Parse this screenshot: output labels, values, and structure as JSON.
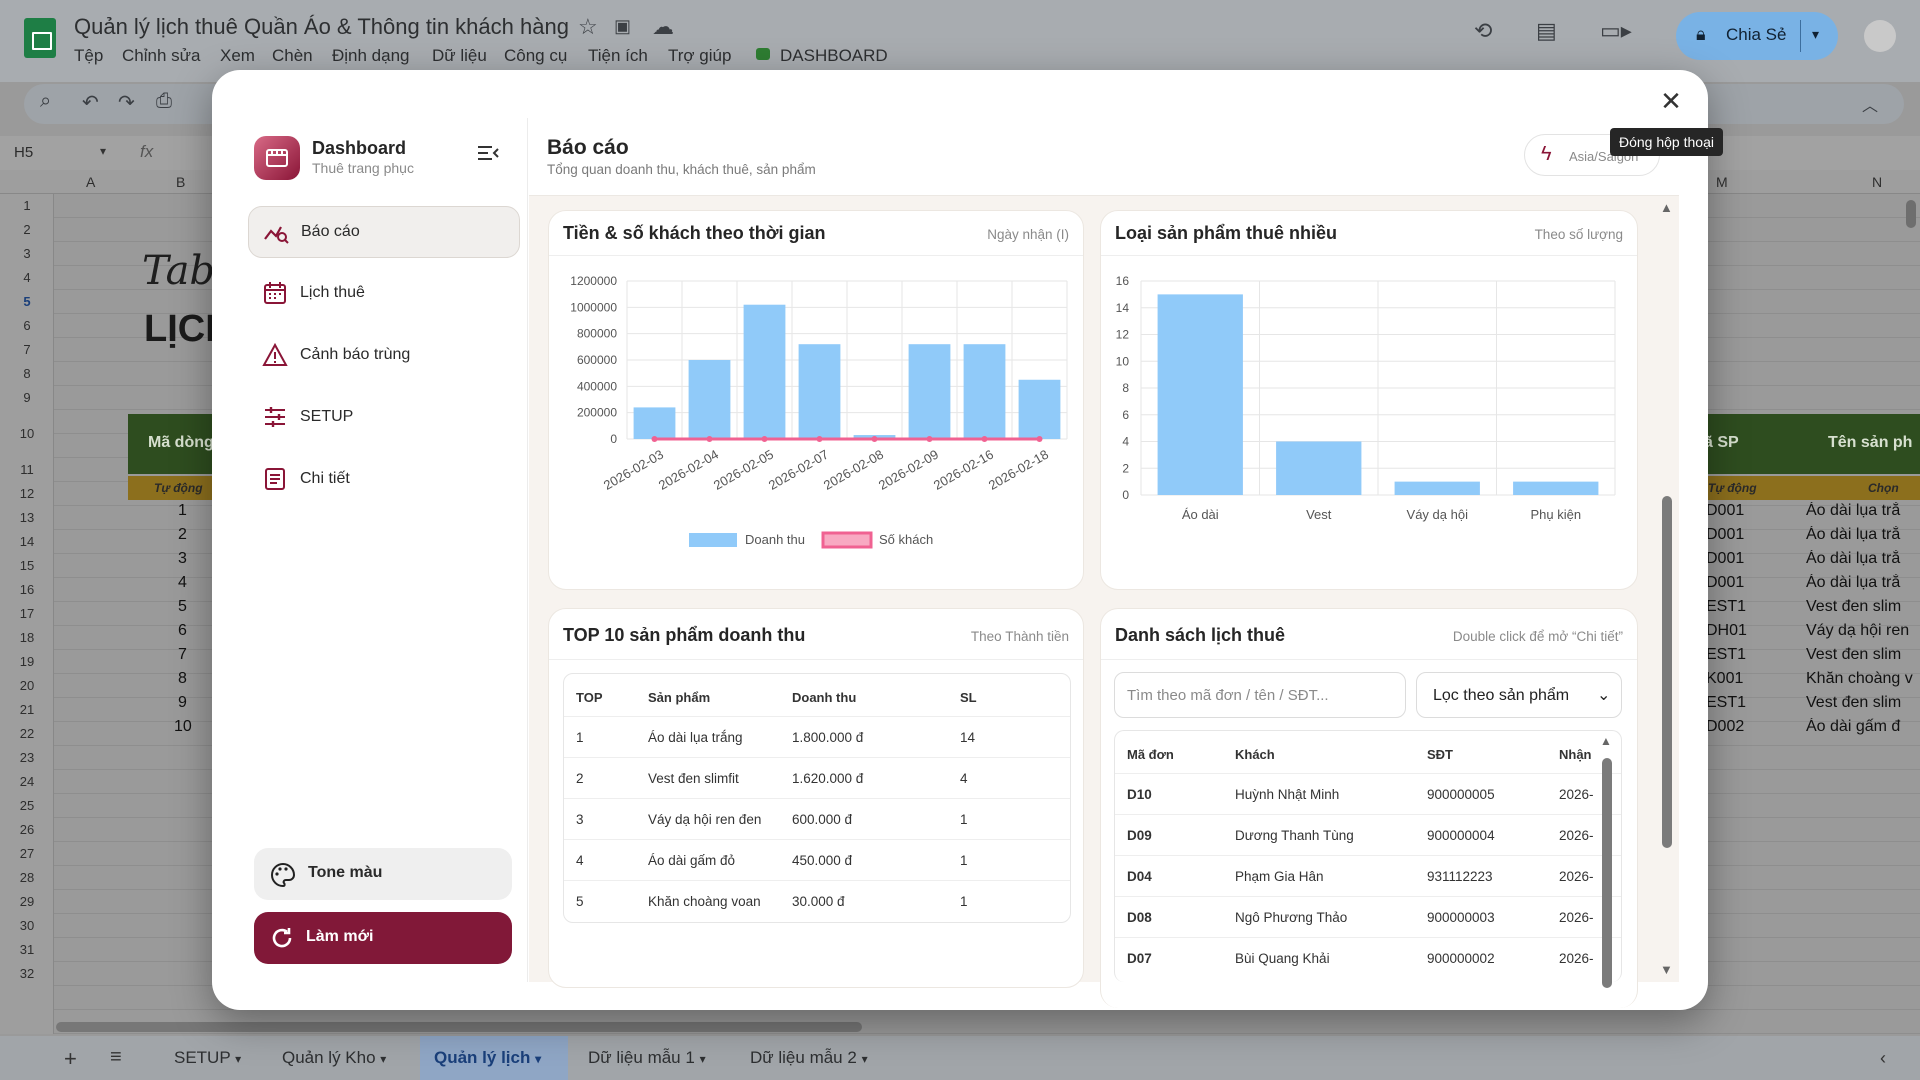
{
  "sheets": {
    "doc_title": "Quản lý lịch thuê Quần Áo & Thông tin khách hàng",
    "menu": [
      "Tệp",
      "Chỉnh sửa",
      "Xem",
      "Chèn",
      "Định dạng",
      "Dữ liệu",
      "Công cụ",
      "Tiện ích",
      "Trợ giúp",
      "DASHBOARD"
    ],
    "share_label": "Chia Sẻ",
    "name_box": "H5",
    "fx": "fx",
    "columns_left": [
      "A",
      "B"
    ],
    "columns_right": [
      "M",
      "N"
    ],
    "rows": [
      "1",
      "2",
      "3",
      "4",
      "5",
      "6",
      "7",
      "8",
      "9",
      "10",
      "11",
      "12",
      "13",
      "14",
      "15",
      "16",
      "17",
      "18",
      "19",
      "20",
      "21",
      "22",
      "23",
      "24",
      "25",
      "26",
      "27",
      "28",
      "29",
      "30",
      "31",
      "32"
    ],
    "big_text_1": "Tab q",
    "big_text_2": "LỊCH",
    "hdr_ma_dong": "Mã dòng",
    "hdr_ma_sp": "ã SP",
    "hdr_ten_sp": "Tên sản ph",
    "sub_tu_dong_left": "Tự động",
    "sub_tu_dong_right": "Tự động",
    "sub_chon": "Chọn",
    "numbers": [
      "1",
      "2",
      "3",
      "4",
      "5",
      "6",
      "7",
      "8",
      "9",
      "10"
    ],
    "codes": [
      "D001",
      "D001",
      "D001",
      "D001",
      "EST1",
      "DH01",
      "EST1",
      "K001",
      "EST1",
      "D002"
    ],
    "names": [
      "Áo dài lụa trắ",
      "Áo dài lụa trắ",
      "Áo dài lụa trắ",
      "Áo dài lụa trắ",
      "Vest đen slim",
      "Váy dạ hội ren",
      "Vest đen slim",
      "Khăn choàng v",
      "Vest đen slim",
      "Áo dài gấm đ"
    ],
    "tabs": [
      "SETUP",
      "Quản lý Kho",
      "Quản lý lịch",
      "Dữ liệu mẫu 1",
      "Dữ liệu mẫu 2"
    ]
  },
  "modal": {
    "tooltip": "Đóng hộp thoại",
    "brand_name": "Dashboard",
    "brand_sub": "Thuê trang phục",
    "nav": [
      {
        "label": "Báo cáo",
        "icon": "chart-line-icon"
      },
      {
        "label": "Lịch thuê",
        "icon": "calendar-icon"
      },
      {
        "label": "Cảnh báo trùng",
        "icon": "warning-icon"
      },
      {
        "label": "SETUP",
        "icon": "sliders-icon"
      },
      {
        "label": "Chi tiết",
        "icon": "document-icon"
      }
    ],
    "tone_label": "Tone màu",
    "refresh_label": "Làm mới",
    "page_title": "Báo cáo",
    "page_sub": "Tổng quan doanh thu, khách thuê, sản phẩm",
    "timezone": "Asia/Saigon",
    "card1_title": "Tiền & số khách theo thời gian",
    "card1_note": "Ngày nhận (I)",
    "card2_title": "Loại sản phẩm thuê nhiều",
    "card2_note": "Theo số lượng",
    "card3_title": "TOP 10 sản phẩm doanh thu",
    "card3_note": "Theo Thành tiền",
    "card4_title": "Danh sách lịch thuê",
    "card4_note": "Double click để mở “Chi tiết”",
    "top_headers": [
      "TOP",
      "Sản phẩm",
      "Doanh thu",
      "SL"
    ],
    "top_rows": [
      [
        "1",
        "Áo dài lụa trắng",
        "1.800.000 đ",
        "14"
      ],
      [
        "2",
        "Vest đen slimfit",
        "1.620.000 đ",
        "4"
      ],
      [
        "3",
        "Váy dạ hội ren đen",
        "600.000 đ",
        "1"
      ],
      [
        "4",
        "Áo dài gấm đỏ",
        "450.000 đ",
        "1"
      ],
      [
        "5",
        "Khăn choàng voan",
        "30.000 đ",
        "1"
      ]
    ],
    "search_placeholder": "Tìm theo mã đơn / tên / SĐT...",
    "filter_label": "Lọc theo sản phẩm",
    "list_headers": [
      "Mã đơn",
      "Khách",
      "SĐT",
      "Nhận"
    ],
    "list_rows": [
      [
        "D10",
        "Huỳnh Nhật Minh",
        "900000005",
        "2026-"
      ],
      [
        "D09",
        "Dương Thanh Tùng",
        "900000004",
        "2026-"
      ],
      [
        "D04",
        "Phạm Gia Hân",
        "931112223",
        "2026-"
      ],
      [
        "D08",
        "Ngô Phương Thảo",
        "900000003",
        "2026-"
      ],
      [
        "D07",
        "Bùi Quang Khải",
        "900000002",
        "2026-"
      ]
    ]
  },
  "chart_data": [
    {
      "type": "bar",
      "title": "Tiền & số khách theo thời gian",
      "categories": [
        "2026-02-03",
        "2026-02-04",
        "2026-02-05",
        "2026-02-07",
        "2026-02-08",
        "2026-02-09",
        "2026-02-16",
        "2026-02-18"
      ],
      "series": [
        {
          "name": "Doanh thu",
          "type": "bar",
          "values": [
            240000,
            600000,
            1020000,
            720000,
            30000,
            720000,
            720000,
            450000
          ]
        },
        {
          "name": "Số khách",
          "type": "line",
          "values": [
            1,
            1,
            1,
            1,
            1,
            1,
            1,
            1
          ]
        }
      ],
      "yticks": [
        "0",
        "200000",
        "400000",
        "600000",
        "800000",
        "1000000",
        "1200000"
      ],
      "ylim": [
        0,
        1200000
      ],
      "grid": true,
      "legend": "bottom",
      "colors": {
        "bar": "#90caf9",
        "line": "#f06292"
      }
    },
    {
      "type": "bar",
      "title": "Loại sản phẩm thuê nhiều",
      "categories": [
        "Áo dài",
        "Vest",
        "Váy dạ hội",
        "Phụ kiện"
      ],
      "values": [
        15,
        4,
        1,
        1
      ],
      "yticks": [
        "0",
        "2",
        "4",
        "6",
        "8",
        "10",
        "12",
        "14",
        "16"
      ],
      "ylim": [
        0,
        16
      ],
      "grid": true,
      "colors": {
        "bar": "#90caf9"
      }
    }
  ]
}
